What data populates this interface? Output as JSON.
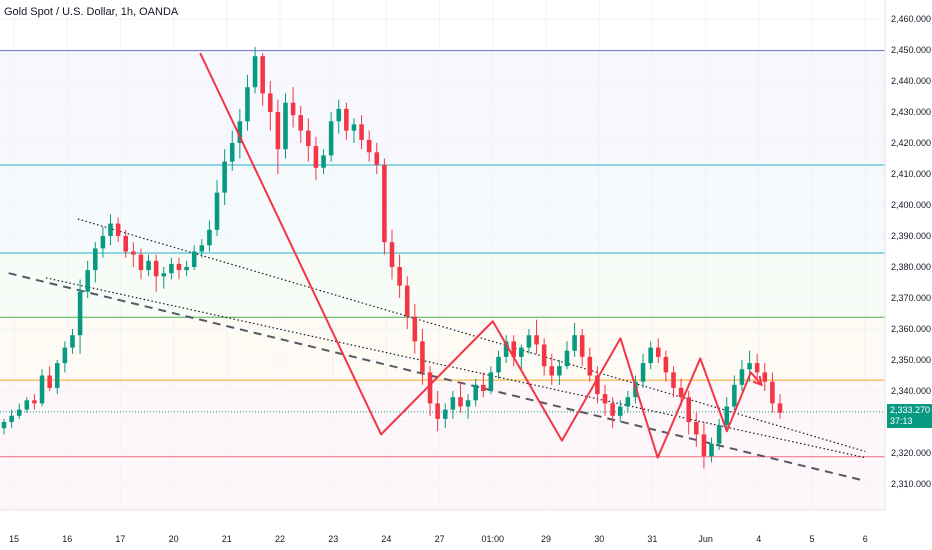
{
  "header": {
    "title": "Gold Spot / U.S. Dollar, 1h, OANDA"
  },
  "last_price": {
    "value": "2,333.270",
    "countdown": "37:13",
    "color": "#089981"
  },
  "colors": {
    "up": "#089981",
    "down": "#f23645",
    "pattern": "#f23645",
    "res1": "#6b74c4",
    "res2": "#22b5c7",
    "res3": "#22b5c7",
    "sup1": "#4caf50",
    "sup2": "#f5a623",
    "sup3": "#f06a82"
  },
  "chart_data": {
    "type": "candlestick",
    "title": "Gold Spot / U.S. Dollar, 1h, OANDA",
    "ylim": [
      2305,
      2465
    ],
    "y_ticks": [
      2310,
      2320,
      2330,
      2340,
      2350,
      2360,
      2370,
      2380,
      2390,
      2400,
      2410,
      2420,
      2430,
      2440,
      2450,
      2460
    ],
    "y_tick_labels": [
      "2,310.000",
      "2,320.000",
      "2,330.000",
      "2,340.000",
      "2,350.000",
      "2,360.000",
      "2,370.000",
      "2,380.000",
      "2,390.000",
      "2,400.000",
      "2,410.000",
      "2,420.000",
      "2,430.000",
      "2,440.000",
      "2,450.000",
      "2,460.000"
    ],
    "x_tick_labels": [
      "15",
      "16",
      "17",
      "20",
      "21",
      "22",
      "23",
      "24",
      "27",
      "01:00",
      "29",
      "30",
      "31",
      "Jun",
      "4",
      "5",
      "6"
    ],
    "horizontal_levels": [
      {
        "price": 2449.8,
        "color_key": "res1"
      },
      {
        "price": 2412.9,
        "color_key": "res2"
      },
      {
        "price": 2384.5,
        "color_key": "res3"
      },
      {
        "price": 2363.8,
        "color_key": "sup1"
      },
      {
        "price": 2343.5,
        "color_key": "sup2"
      },
      {
        "price": 2318.8,
        "color_key": "sup3"
      }
    ],
    "pattern_path": [
      [
        3.5,
        2449.0
      ],
      [
        6.9,
        2326.0
      ],
      [
        9.0,
        2362.5
      ],
      [
        10.3,
        2324.0
      ],
      [
        11.4,
        2357.0
      ],
      [
        12.1,
        2318.5
      ],
      [
        12.9,
        2350.5
      ],
      [
        13.4,
        2327.0
      ],
      [
        13.85,
        2346.0
      ],
      [
        14.05,
        2342.0
      ]
    ],
    "trend_channel_upper": [
      [
        1.2,
        2395.5
      ],
      [
        16.0,
        2320.5
      ]
    ],
    "trend_channel_lower": [
      [
        0.6,
        2376.5
      ],
      [
        16.0,
        2318.5
      ]
    ],
    "dashed_trend": [
      [
        -0.1,
        2378.0
      ],
      [
        16.0,
        2311.0
      ]
    ],
    "ohlc": [
      [
        2328,
        2331,
        2326,
        2330
      ],
      [
        2330,
        2334,
        2328,
        2332
      ],
      [
        2332,
        2336,
        2331,
        2334
      ],
      [
        2334,
        2338,
        2333,
        2337
      ],
      [
        2337,
        2339,
        2334,
        2336
      ],
      [
        2336,
        2347,
        2335,
        2345
      ],
      [
        2345,
        2348,
        2340,
        2341
      ],
      [
        2341,
        2350,
        2339,
        2349
      ],
      [
        2349,
        2356,
        2346,
        2354
      ],
      [
        2354,
        2360,
        2352,
        2358
      ],
      [
        2358,
        2376,
        2352,
        2372
      ],
      [
        2372,
        2382,
        2370,
        2379
      ],
      [
        2379,
        2388,
        2375,
        2386
      ],
      [
        2386,
        2393,
        2383,
        2390
      ],
      [
        2390,
        2397,
        2387,
        2394
      ],
      [
        2394,
        2396,
        2388,
        2390
      ],
      [
        2390,
        2392,
        2383,
        2385
      ],
      [
        2385,
        2388,
        2380,
        2384
      ],
      [
        2384,
        2386,
        2376,
        2379
      ],
      [
        2379,
        2384,
        2377,
        2382
      ],
      [
        2382,
        2384,
        2372,
        2377
      ],
      [
        2377,
        2380,
        2373,
        2378
      ],
      [
        2378,
        2383,
        2376,
        2381
      ],
      [
        2381,
        2383,
        2376,
        2379
      ],
      [
        2379,
        2382,
        2377,
        2380
      ],
      [
        2380,
        2387,
        2379,
        2385
      ],
      [
        2385,
        2389,
        2383,
        2387
      ],
      [
        2387,
        2395,
        2385,
        2392
      ],
      [
        2392,
        2408,
        2390,
        2404
      ],
      [
        2404,
        2418,
        2400,
        2414
      ],
      [
        2414,
        2424,
        2411,
        2420
      ],
      [
        2420,
        2431,
        2415,
        2427
      ],
      [
        2427,
        2442,
        2424,
        2438
      ],
      [
        2438,
        2451,
        2436,
        2448
      ],
      [
        2448,
        2449,
        2432,
        2436
      ],
      [
        2436,
        2440,
        2424,
        2430
      ],
      [
        2430,
        2434,
        2410,
        2418
      ],
      [
        2418,
        2436,
        2415,
        2433
      ],
      [
        2433,
        2438,
        2425,
        2429
      ],
      [
        2429,
        2432,
        2420,
        2424
      ],
      [
        2424,
        2428,
        2414,
        2419
      ],
      [
        2419,
        2422,
        2408,
        2412
      ],
      [
        2412,
        2418,
        2410,
        2416
      ],
      [
        2416,
        2430,
        2414,
        2427
      ],
      [
        2427,
        2434,
        2423,
        2431
      ],
      [
        2431,
        2433,
        2421,
        2424
      ],
      [
        2424,
        2428,
        2420,
        2426
      ],
      [
        2426,
        2429,
        2418,
        2421
      ],
      [
        2421,
        2424,
        2414,
        2417
      ],
      [
        2417,
        2420,
        2410,
        2413
      ],
      [
        2413,
        2415,
        2384,
        2388
      ],
      [
        2388,
        2392,
        2376,
        2380
      ],
      [
        2380,
        2384,
        2370,
        2374
      ],
      [
        2374,
        2377,
        2360,
        2364
      ],
      [
        2364,
        2368,
        2352,
        2356
      ],
      [
        2356,
        2360,
        2342,
        2346
      ],
      [
        2346,
        2348,
        2332,
        2336
      ],
      [
        2336,
        2340,
        2327,
        2331
      ],
      [
        2331,
        2336,
        2328,
        2334
      ],
      [
        2334,
        2340,
        2331,
        2338
      ],
      [
        2338,
        2343,
        2333,
        2335
      ],
      [
        2335,
        2339,
        2331,
        2337
      ],
      [
        2337,
        2344,
        2335,
        2342
      ],
      [
        2342,
        2346,
        2338,
        2340
      ],
      [
        2340,
        2348,
        2339,
        2346
      ],
      [
        2346,
        2353,
        2344,
        2351
      ],
      [
        2351,
        2358,
        2349,
        2356
      ],
      [
        2356,
        2358,
        2348,
        2351
      ],
      [
        2351,
        2355,
        2347,
        2354
      ],
      [
        2354,
        2360,
        2352,
        2358
      ],
      [
        2358,
        2363,
        2352,
        2355
      ],
      [
        2355,
        2357,
        2345,
        2348
      ],
      [
        2348,
        2352,
        2342,
        2345
      ],
      [
        2345,
        2350,
        2342,
        2348
      ],
      [
        2348,
        2356,
        2347,
        2353
      ],
      [
        2353,
        2362,
        2351,
        2358
      ],
      [
        2358,
        2360,
        2348,
        2351
      ],
      [
        2351,
        2354,
        2343,
        2345
      ],
      [
        2345,
        2348,
        2336,
        2339
      ],
      [
        2339,
        2342,
        2332,
        2336
      ],
      [
        2336,
        2338,
        2328,
        2332
      ],
      [
        2332,
        2337,
        2330,
        2335
      ],
      [
        2335,
        2340,
        2333,
        2338
      ],
      [
        2338,
        2345,
        2336,
        2343
      ],
      [
        2343,
        2352,
        2341,
        2349
      ],
      [
        2349,
        2356,
        2347,
        2354
      ],
      [
        2354,
        2357,
        2349,
        2351
      ],
      [
        2351,
        2353,
        2343,
        2346
      ],
      [
        2346,
        2348,
        2338,
        2341
      ],
      [
        2341,
        2344,
        2335,
        2338
      ],
      [
        2338,
        2340,
        2326,
        2330
      ],
      [
        2330,
        2333,
        2322,
        2326
      ],
      [
        2326,
        2330,
        2315,
        2319
      ],
      [
        2319,
        2325,
        2317,
        2323
      ],
      [
        2323,
        2331,
        2321,
        2329
      ],
      [
        2329,
        2338,
        2327,
        2335
      ],
      [
        2335,
        2345,
        2333,
        2342
      ],
      [
        2342,
        2350,
        2340,
        2347
      ],
      [
        2347,
        2353,
        2343,
        2349
      ],
      [
        2349,
        2352,
        2344,
        2346
      ],
      [
        2346,
        2349,
        2340,
        2343
      ],
      [
        2343,
        2346,
        2333,
        2336
      ],
      [
        2336,
        2339,
        2331,
        2333
      ]
    ]
  }
}
